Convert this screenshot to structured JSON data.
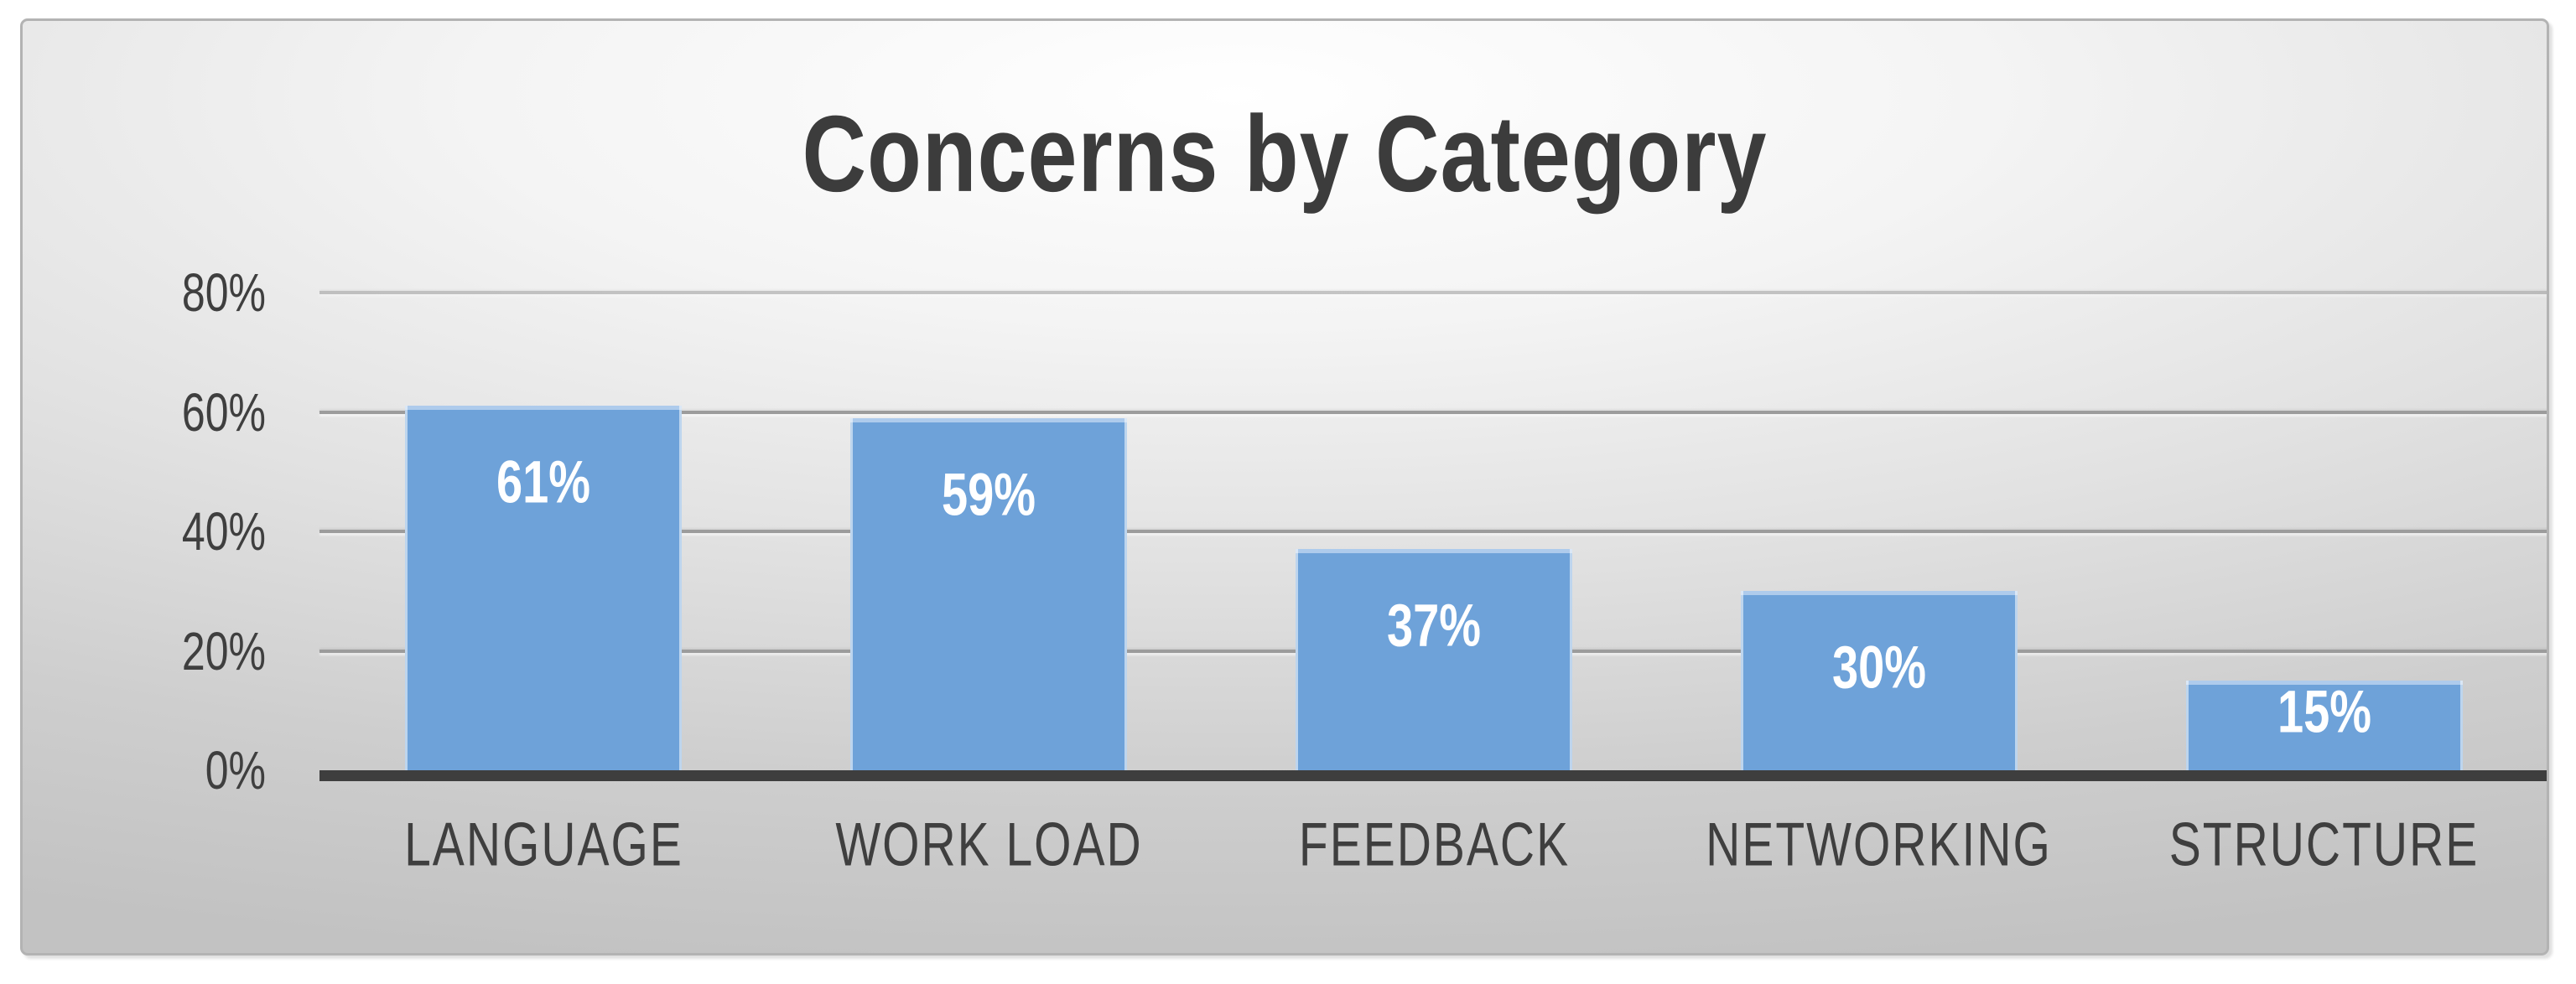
{
  "chart_data": {
    "type": "bar",
    "title": "Concerns by Category",
    "categories": [
      "LANGUAGE",
      "WORK LOAD",
      "FEEDBACK",
      "NETWORKING",
      "STRUCTURE"
    ],
    "values": [
      61,
      59,
      37,
      30,
      15
    ],
    "value_labels": [
      "61%",
      "59%",
      "37%",
      "30%",
      "15%"
    ],
    "y_ticks": [
      "0%",
      "20%",
      "40%",
      "60%",
      "80%"
    ],
    "ylim": [
      0,
      80
    ],
    "xlabel": "",
    "ylabel": "",
    "grid": true,
    "legend_position": "none",
    "colors": {
      "bar": "#6ea2d9",
      "bar_top_cap": "#aecbec",
      "bar_value_label": "#ffffff",
      "axis_line": "#3e3e3e",
      "gridline": "#9c9c9c",
      "tick_text": "#3f3f3f",
      "title_text": "#3c3c3c",
      "chart_border": "#b3b3b3"
    }
  }
}
